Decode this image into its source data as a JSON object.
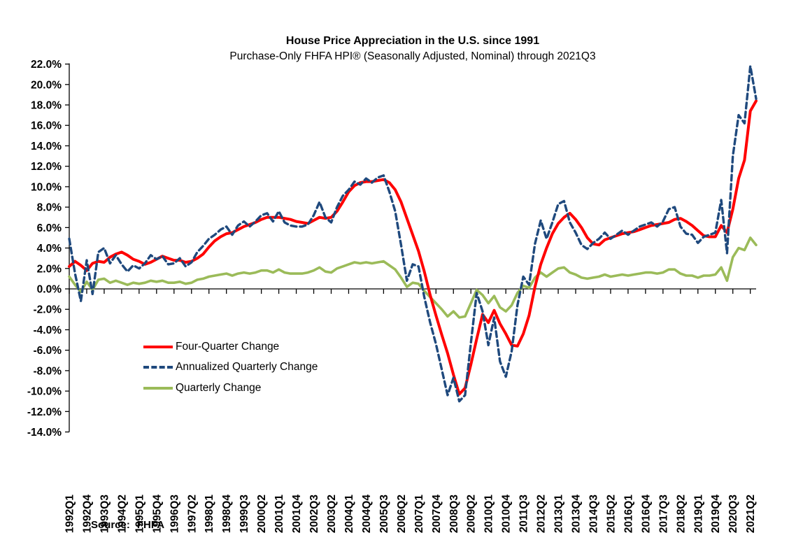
{
  "header": {
    "title": "House Price Appreciation in the U.S. since 1991",
    "subtitle": "Purchase-Only FHFA HPI® (Seasonally Adjusted, Nominal) through 2021Q3"
  },
  "footer": {
    "source_label": "Source:",
    "source_value": "FHFA"
  },
  "chart_data": {
    "type": "line",
    "title": "House Price Appreciation in the U.S. since 1991",
    "subtitle": "Purchase-Only FHFA HPI® (Seasonally Adjusted, Nominal) through 2021Q3",
    "grid": "off",
    "legend_position": "inside-left-middle",
    "y_axis": {
      "min": -14,
      "max": 22,
      "step": 2,
      "unit": "%"
    },
    "y_tick_labels": [
      "22.0%",
      "20.0%",
      "18.0%",
      "16.0%",
      "14.0%",
      "12.0%",
      "10.0%",
      "8.0%",
      "6.0%",
      "4.0%",
      "2.0%",
      "0.0%",
      "-2.0%",
      "-4.0%",
      "-6.0%",
      "-8.0%",
      "-10.0%",
      "-12.0%",
      "-14.0%"
    ],
    "x_tick_labels": [
      "1992Q1",
      "1992Q4",
      "1993Q3",
      "1994Q2",
      "1995Q1",
      "1995Q4",
      "1996Q3",
      "1997Q2",
      "1998Q1",
      "1998Q4",
      "1999Q3",
      "2000Q2",
      "2001Q1",
      "2001Q4",
      "2002Q3",
      "2003Q2",
      "2004Q1",
      "2004Q4",
      "2005Q3",
      "2006Q2",
      "2007Q1",
      "2007Q4",
      "2008Q3",
      "2009Q2",
      "2010Q1",
      "2010Q4",
      "2011Q3",
      "2012Q2",
      "2013Q1",
      "2013Q4",
      "2014Q3",
      "2015Q2",
      "2016Q1",
      "2016Q4",
      "2017Q3",
      "2018Q2",
      "2019Q1",
      "2019Q4",
      "2020Q3",
      "2021Q2"
    ],
    "x_label_interval": 3,
    "categories": [
      "1992Q1",
      "1992Q2",
      "1992Q3",
      "1992Q4",
      "1993Q1",
      "1993Q2",
      "1993Q3",
      "1993Q4",
      "1994Q1",
      "1994Q2",
      "1994Q3",
      "1994Q4",
      "1995Q1",
      "1995Q2",
      "1995Q3",
      "1995Q4",
      "1996Q1",
      "1996Q2",
      "1996Q3",
      "1996Q4",
      "1997Q1",
      "1997Q2",
      "1997Q3",
      "1997Q4",
      "1998Q1",
      "1998Q2",
      "1998Q3",
      "1998Q4",
      "1999Q1",
      "1999Q2",
      "1999Q3",
      "1999Q4",
      "2000Q1",
      "2000Q2",
      "2000Q3",
      "2000Q4",
      "2001Q1",
      "2001Q2",
      "2001Q3",
      "2001Q4",
      "2002Q1",
      "2002Q2",
      "2002Q3",
      "2002Q4",
      "2003Q1",
      "2003Q2",
      "2003Q3",
      "2003Q4",
      "2004Q1",
      "2004Q2",
      "2004Q3",
      "2004Q4",
      "2005Q1",
      "2005Q2",
      "2005Q3",
      "2005Q4",
      "2006Q1",
      "2006Q2",
      "2006Q3",
      "2006Q4",
      "2007Q1",
      "2007Q2",
      "2007Q3",
      "2007Q4",
      "2008Q1",
      "2008Q2",
      "2008Q3",
      "2008Q4",
      "2009Q1",
      "2009Q2",
      "2009Q3",
      "2009Q4",
      "2010Q1",
      "2010Q2",
      "2010Q3",
      "2010Q4",
      "2011Q1",
      "2011Q2",
      "2011Q3",
      "2011Q4",
      "2012Q1",
      "2012Q2",
      "2012Q3",
      "2012Q4",
      "2013Q1",
      "2013Q2",
      "2013Q3",
      "2013Q4",
      "2014Q1",
      "2014Q2",
      "2014Q3",
      "2014Q4",
      "2015Q1",
      "2015Q2",
      "2015Q3",
      "2015Q4",
      "2016Q1",
      "2016Q2",
      "2016Q3",
      "2016Q4",
      "2017Q1",
      "2017Q2",
      "2017Q3",
      "2017Q4",
      "2018Q1",
      "2018Q2",
      "2018Q3",
      "2018Q4",
      "2019Q1",
      "2019Q2",
      "2019Q3",
      "2019Q4",
      "2020Q1",
      "2020Q2",
      "2020Q3",
      "2020Q4",
      "2021Q1",
      "2021Q2",
      "2021Q3"
    ],
    "series": [
      {
        "name": "Four-Quarter Change",
        "color": "#ff0000",
        "style": "solid",
        "values": [
          2.2,
          2.7,
          2.3,
          1.8,
          2.5,
          2.7,
          2.6,
          3.1,
          3.4,
          3.6,
          3.3,
          2.9,
          2.7,
          2.4,
          2.6,
          2.9,
          3.2,
          3.0,
          2.8,
          2.8,
          2.6,
          2.7,
          3.0,
          3.4,
          4.1,
          4.7,
          5.1,
          5.4,
          5.5,
          5.8,
          6.1,
          6.3,
          6.5,
          6.8,
          7.0,
          7.0,
          7.0,
          6.9,
          6.8,
          6.6,
          6.5,
          6.4,
          6.7,
          7.0,
          6.9,
          7.0,
          7.6,
          8.5,
          9.5,
          10.1,
          10.4,
          10.5,
          10.5,
          10.6,
          10.7,
          10.4,
          9.7,
          8.5,
          6.9,
          5.3,
          3.7,
          1.7,
          -0.6,
          -2.6,
          -4.5,
          -6.3,
          -8.4,
          -10.3,
          -9.7,
          -7.4,
          -4.9,
          -2.5,
          -3.3,
          -2.1,
          -3.4,
          -4.4,
          -5.5,
          -5.6,
          -4.4,
          -2.6,
          0.2,
          2.4,
          4.0,
          5.4,
          6.4,
          7.0,
          7.4,
          6.8,
          6.0,
          5.0,
          4.4,
          4.3,
          4.8,
          5.0,
          5.2,
          5.4,
          5.5,
          5.6,
          5.8,
          6.0,
          6.2,
          6.3,
          6.4,
          6.5,
          6.8,
          6.9,
          6.6,
          6.2,
          5.7,
          5.2,
          5.1,
          5.1,
          6.2,
          5.5,
          7.8,
          10.8,
          12.6,
          17.4,
          18.4
        ]
      },
      {
        "name": "Annualized Quarterly Change",
        "color": "#1f497d",
        "style": "dashed",
        "values": [
          4.9,
          1.5,
          -1.2,
          2.8,
          -0.5,
          3.6,
          4.0,
          2.5,
          3.3,
          2.4,
          1.7,
          2.3,
          2.0,
          2.5,
          3.3,
          2.9,
          3.2,
          2.4,
          2.5,
          3.0,
          2.2,
          2.6,
          3.6,
          4.2,
          4.9,
          5.3,
          5.8,
          6.1,
          5.3,
          6.2,
          6.6,
          6.1,
          6.6,
          7.2,
          7.4,
          6.6,
          7.6,
          6.5,
          6.2,
          6.1,
          6.1,
          6.3,
          7.2,
          8.5,
          7.0,
          6.5,
          8.0,
          9.1,
          9.7,
          10.5,
          10.2,
          10.8,
          10.4,
          10.9,
          11.1,
          9.5,
          7.6,
          4.3,
          0.8,
          2.4,
          2.2,
          -0.8,
          -3.3,
          -5.4,
          -7.9,
          -10.4,
          -8.7,
          -11.0,
          -10.4,
          -5.3,
          -0.4,
          -2.2,
          -5.5,
          -2.8,
          -7.1,
          -8.6,
          -6.1,
          -1.6,
          1.2,
          0.4,
          4.4,
          6.7,
          4.9,
          6.5,
          8.3,
          8.6,
          6.5,
          5.5,
          4.3,
          3.9,
          4.5,
          4.9,
          5.5,
          4.9,
          5.3,
          5.7,
          5.3,
          5.7,
          6.1,
          6.3,
          6.5,
          6.1,
          6.6,
          7.8,
          8.0,
          6.1,
          5.4,
          5.3,
          4.5,
          5.1,
          5.3,
          5.5,
          8.7,
          3.5,
          13.0,
          17.0,
          16.2,
          21.8,
          18.6
        ]
      },
      {
        "name": "Quarterly Change",
        "color": "#9bbb59",
        "style": "solid",
        "values": [
          1.2,
          0.4,
          -0.3,
          0.7,
          -0.1,
          0.9,
          1.0,
          0.6,
          0.8,
          0.6,
          0.4,
          0.6,
          0.5,
          0.6,
          0.8,
          0.7,
          0.8,
          0.6,
          0.6,
          0.7,
          0.5,
          0.6,
          0.9,
          1.0,
          1.2,
          1.3,
          1.4,
          1.5,
          1.3,
          1.5,
          1.6,
          1.5,
          1.6,
          1.8,
          1.8,
          1.6,
          1.9,
          1.6,
          1.5,
          1.5,
          1.5,
          1.6,
          1.8,
          2.1,
          1.7,
          1.6,
          2.0,
          2.2,
          2.4,
          2.6,
          2.5,
          2.6,
          2.5,
          2.6,
          2.7,
          2.3,
          1.9,
          1.1,
          0.2,
          0.6,
          0.5,
          -0.2,
          -0.8,
          -1.4,
          -2.0,
          -2.7,
          -2.2,
          -2.8,
          -2.7,
          -1.4,
          -0.1,
          -0.6,
          -1.4,
          -0.7,
          -1.8,
          -2.2,
          -1.6,
          -0.4,
          0.3,
          0.1,
          1.1,
          1.6,
          1.2,
          1.6,
          2.0,
          2.1,
          1.6,
          1.4,
          1.1,
          1.0,
          1.1,
          1.2,
          1.4,
          1.2,
          1.3,
          1.4,
          1.3,
          1.4,
          1.5,
          1.6,
          1.6,
          1.5,
          1.6,
          1.9,
          1.9,
          1.5,
          1.3,
          1.3,
          1.1,
          1.3,
          1.3,
          1.4,
          2.1,
          0.8,
          3.1,
          4.0,
          3.8,
          5.0,
          4.3
        ]
      }
    ]
  }
}
